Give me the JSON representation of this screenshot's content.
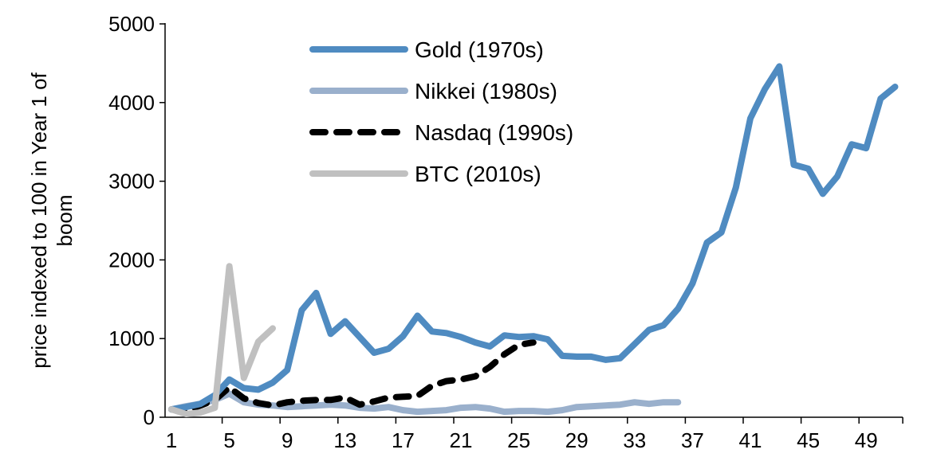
{
  "chart_data": {
    "type": "line",
    "title": "",
    "xlabel": "",
    "ylabel": "price indexed to 100 in Year 1 of boom",
    "ylim": [
      0,
      5000
    ],
    "yticks": [
      "0",
      "1000",
      "2000",
      "3000",
      "4000",
      "5000"
    ],
    "xticks": [
      "1",
      "5",
      "9",
      "13",
      "17",
      "21",
      "25",
      "29",
      "33",
      "37",
      "41",
      "45",
      "49"
    ],
    "grid": false,
    "legend_placement": "top-center",
    "series": [
      {
        "name": "Gold (1970s)",
        "color": "#4f8bc1",
        "dash": false,
        "values": [
          100,
          130,
          170,
          280,
          480,
          370,
          350,
          440,
          600,
          1360,
          1580,
          1060,
          1220,
          1020,
          820,
          870,
          1030,
          1290,
          1090,
          1070,
          1020,
          950,
          900,
          1040,
          1020,
          1030,
          990,
          780,
          770,
          770,
          730,
          750,
          930,
          1110,
          1170,
          1380,
          1700,
          2220,
          2350,
          2920,
          3800,
          4170,
          4460,
          3210,
          3160,
          2840,
          3060,
          3470,
          3420,
          4050,
          4200
        ]
      },
      {
        "name": "Nikkei (1980s)",
        "color": "#9ab0cc",
        "dash": false,
        "values": [
          100,
          140,
          170,
          220,
          300,
          190,
          160,
          150,
          130,
          140,
          150,
          160,
          150,
          120,
          110,
          130,
          90,
          70,
          80,
          90,
          120,
          130,
          110,
          70,
          80,
          80,
          70,
          90,
          130,
          140,
          150,
          160,
          190,
          170,
          190,
          190
        ]
      },
      {
        "name": "Nasdaq (1990s)",
        "color": "#000000",
        "dash": true,
        "values": [
          100,
          80,
          150,
          220,
          380,
          240,
          180,
          150,
          190,
          210,
          220,
          220,
          250,
          160,
          200,
          250,
          260,
          270,
          400,
          460,
          480,
          520,
          640,
          800,
          920,
          950
        ]
      },
      {
        "name": "BTC (2010s)",
        "color": "#c0c0c0",
        "dash": false,
        "values": [
          100,
          40,
          60,
          120,
          1920,
          500,
          960,
          1130
        ]
      }
    ]
  }
}
